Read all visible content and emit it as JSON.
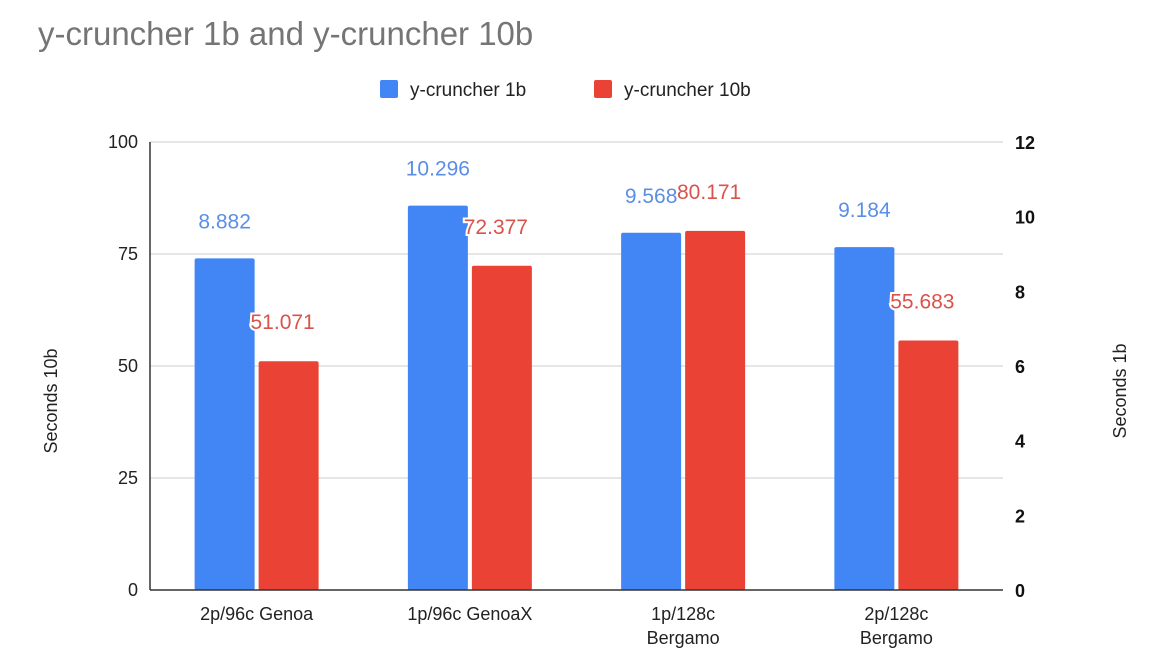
{
  "chart_data": {
    "type": "bar",
    "title": "y-cruncher 1b and y-cruncher 10b",
    "categories": [
      [
        "2p/96c Genoa"
      ],
      [
        "1p/96c GenoaX"
      ],
      [
        "1p/128c",
        "Bergamo"
      ],
      [
        "2p/128c",
        "Bergamo"
      ]
    ],
    "series": [
      {
        "name": "y-cruncher 1b",
        "axis": "right",
        "color": "#4285f4",
        "label_color": "#5b8ee6",
        "values": [
          8.882,
          10.296,
          9.568,
          9.184
        ],
        "labels": [
          "8.882",
          "10.296",
          "9.568",
          "9.184"
        ]
      },
      {
        "name": "y-cruncher 10b",
        "axis": "left",
        "color": "#ea4335",
        "label_color": "#d9534b",
        "values": [
          51.071,
          72.377,
          80.171,
          55.683
        ],
        "labels": [
          "51.071",
          "72.377",
          "80.171",
          "55.683"
        ]
      }
    ],
    "y_left": {
      "label": "Seconds 10b",
      "ylim": [
        0,
        100
      ],
      "ticks": [
        "0",
        "25",
        "50",
        "75",
        "100"
      ]
    },
    "y_right": {
      "label": "Seconds 1b",
      "ylim": [
        0,
        12
      ],
      "ticks": [
        "0",
        "2",
        "4",
        "6",
        "8",
        "10",
        "12"
      ]
    },
    "grid": true,
    "legend": "top-center"
  }
}
